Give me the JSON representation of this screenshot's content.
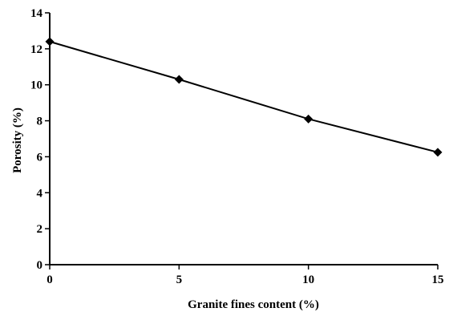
{
  "chart_data": {
    "type": "line",
    "xlabel": "Granite fines content (%)",
    "ylabel": "Porosity (%)",
    "xlim": [
      0,
      15
    ],
    "ylim": [
      0,
      14
    ],
    "x_ticks": [
      "0",
      "5",
      "10",
      "15"
    ],
    "y_ticks": [
      "0",
      "2",
      "4",
      "6",
      "8",
      "10",
      "12",
      "14"
    ],
    "grid": false,
    "series": [
      {
        "x": [
          0,
          5,
          10,
          15
        ],
        "y": [
          12.4,
          10.3,
          8.1,
          6.25
        ],
        "marker": "diamond",
        "color": "#000000"
      }
    ]
  }
}
